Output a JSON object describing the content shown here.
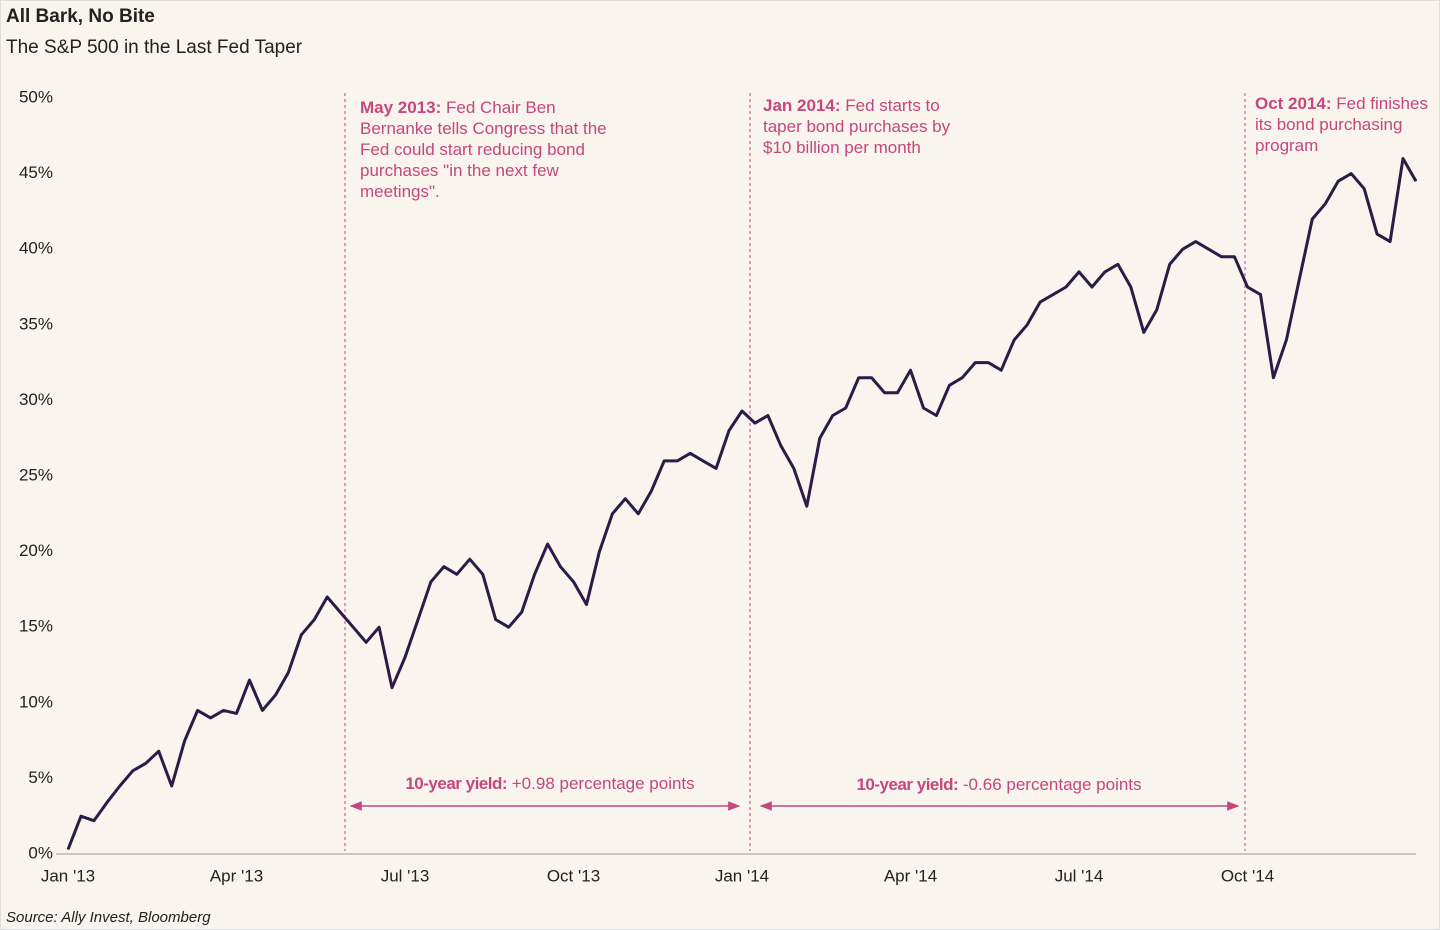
{
  "chart_data": {
    "type": "line",
    "title": "All Bark, No Bite",
    "subtitle": "The S&P 500 in the Last Fed Taper",
    "source": "Source: Ally Invest, Bloomberg",
    "categories": [
      "Jan '13",
      null,
      null,
      null,
      null,
      null,
      null,
      null,
      null,
      null,
      null,
      null,
      null,
      "Apr '13",
      null,
      null,
      null,
      null,
      null,
      null,
      null,
      null,
      null,
      null,
      null,
      null,
      "Jul '13",
      null,
      null,
      null,
      null,
      null,
      null,
      null,
      null,
      null,
      null,
      null,
      null,
      "Oct '13",
      null,
      null,
      null,
      null,
      null,
      null,
      null,
      null,
      null,
      null,
      null,
      null,
      "Jan '14",
      null,
      null,
      null,
      null,
      null,
      null,
      null,
      null,
      null,
      null,
      null,
      null,
      "Apr '14",
      null,
      null,
      null,
      null,
      null,
      null,
      null,
      null,
      null,
      null,
      null,
      null,
      "Jul '14",
      null,
      null,
      null,
      null,
      null,
      null,
      null,
      null,
      null,
      null,
      null,
      null,
      "Oct '14",
      null,
      null,
      null,
      null,
      null,
      null,
      null,
      null,
      null,
      null,
      null,
      null,
      null
    ],
    "series": [
      {
        "name": "S&P 500",
        "color": "#2e1a47",
        "values": [
          0.3,
          2.5,
          2.2,
          3.4,
          4.5,
          5.5,
          6.0,
          6.8,
          4.5,
          7.5,
          9.5,
          9.0,
          9.5,
          9.3,
          11.5,
          9.5,
          10.5,
          12.0,
          14.5,
          15.5,
          17.0,
          16.0,
          15.0,
          14.0,
          15.0,
          11.0,
          13.0,
          15.5,
          18.0,
          19.0,
          18.5,
          19.5,
          18.5,
          15.5,
          15.0,
          16.0,
          18.5,
          20.5,
          19.0,
          18.0,
          16.5,
          20.0,
          22.5,
          23.5,
          22.5,
          24.0,
          26.0,
          26.0,
          26.5,
          26.0,
          25.5,
          28.0,
          29.3,
          28.5,
          29.0,
          27.0,
          25.5,
          23.0,
          27.5,
          29.0,
          29.5,
          31.5,
          31.5,
          30.5,
          30.5,
          32.0,
          29.5,
          29.0,
          31.0,
          31.5,
          32.5,
          32.5,
          32.0,
          34.0,
          35.0,
          36.5,
          37.0,
          37.5,
          38.5,
          37.5,
          38.5,
          39.0,
          37.5,
          34.5,
          36.0,
          39.0,
          40.0,
          40.5,
          40.0,
          39.5,
          39.5,
          37.5,
          37.0,
          31.5,
          34.0,
          38.0,
          42.0,
          43.0,
          44.5,
          45.0,
          44.0,
          41.0,
          40.5,
          46.0,
          44.5
        ]
      }
    ],
    "ylim": [
      0,
      50
    ],
    "yticks": [
      {
        "value": 0,
        "label": "0%"
      },
      {
        "value": 5,
        "label": "5%"
      },
      {
        "value": 10,
        "label": "10%"
      },
      {
        "value": 15,
        "label": "15%"
      },
      {
        "value": 20,
        "label": "20%"
      },
      {
        "value": 25,
        "label": "25%"
      },
      {
        "value": 30,
        "label": "30%"
      },
      {
        "value": 35,
        "label": "35%"
      },
      {
        "value": 40,
        "label": "40%"
      },
      {
        "value": 45,
        "label": "45%"
      },
      {
        "value": 50,
        "label": "50%"
      }
    ],
    "grid": false,
    "annotations": [
      {
        "label": "May 2013:",
        "text": "Fed Chair Ben Bernanke tells Congress that the Fed could start reducing bond purchases \"in the next few meetings\"."
      },
      {
        "label": "Jan 2014:",
        "text": "Fed starts to taper bond purchases by $10 billion per month"
      },
      {
        "label": "Oct 2014:",
        "text": "Fed finishes its bond purchasing program"
      }
    ],
    "yield_notes": [
      {
        "label": "10-year yield:",
        "text": "+0.98 percentage points"
      },
      {
        "label": "10-year yield:",
        "text": "-0.66 percentage points"
      }
    ]
  }
}
